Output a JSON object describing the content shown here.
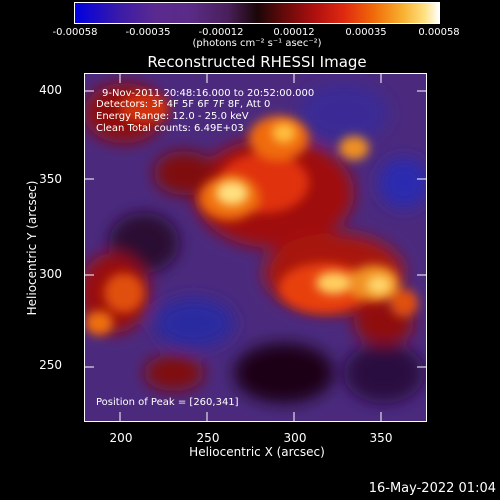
{
  "colorbar": {
    "tick_labels": [
      "-0.00058",
      "-0.00035",
      "-0.00012",
      "0.00012",
      "0.00035",
      "0.00058"
    ],
    "unit_label": "(photons cm⁻² s⁻¹ asec⁻²)"
  },
  "title": "Reconstructed RHESSI Image",
  "info": {
    "time_range": "9-Nov-2011 20:48:16.000 to 20:52:00.000",
    "detectors": "Detectors: 3F 4F 5F 6F 7F 8F, Att 0",
    "energy": "Energy Range: 12.0 - 25.0 keV",
    "clean": "Clean    Total counts: 6.49E+03",
    "peak": "Position of Peak = [260,341]"
  },
  "axes": {
    "xlabel": "Heliocentric X (arcsec)",
    "ylabel": "Heliocentric Y (arcsec)",
    "xticks": [
      "200",
      "250",
      "300",
      "350"
    ],
    "yticks": [
      "400",
      "350",
      "300",
      "250"
    ]
  },
  "footer": "16-May-2022 01:04",
  "colors": {
    "hot_peak": "#ffffff",
    "hot_mid": "#f08020",
    "hot_low": "#b01010",
    "background_cool": "#4a2a80",
    "deep_blue": "#1a1a90"
  }
}
